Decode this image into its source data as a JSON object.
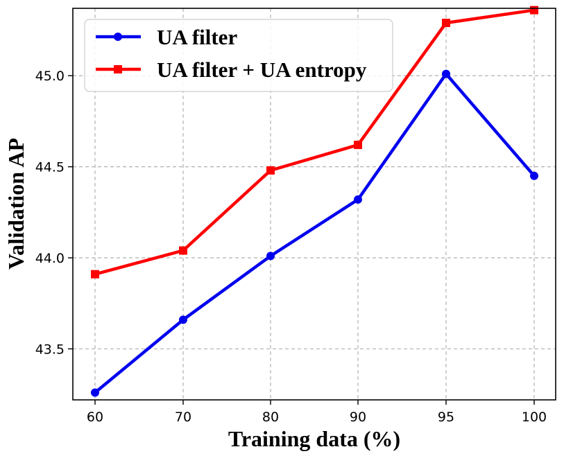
{
  "chart_data": {
    "type": "line",
    "title": "",
    "xlabel": "Training data (%)",
    "ylabel": "Validation AP",
    "categories": [
      "60",
      "70",
      "80",
      "90",
      "95",
      "100"
    ],
    "yticks": [
      "43.5",
      "44.0",
      "44.5",
      "45.0"
    ],
    "ytick_values": [
      43.5,
      44.0,
      44.5,
      45.0
    ],
    "ylim": [
      43.22,
      45.37
    ],
    "grid": true,
    "legend_position": "top-left",
    "series": [
      {
        "name": "UA filter",
        "color": "#0000ee",
        "marker": "circle",
        "values": [
          43.26,
          43.66,
          44.01,
          44.32,
          45.01,
          44.45
        ]
      },
      {
        "name": "UA filter + UA entropy",
        "color": "#ff0000",
        "marker": "square",
        "values": [
          43.91,
          44.04,
          44.48,
          44.62,
          45.29,
          45.36
        ]
      }
    ]
  }
}
